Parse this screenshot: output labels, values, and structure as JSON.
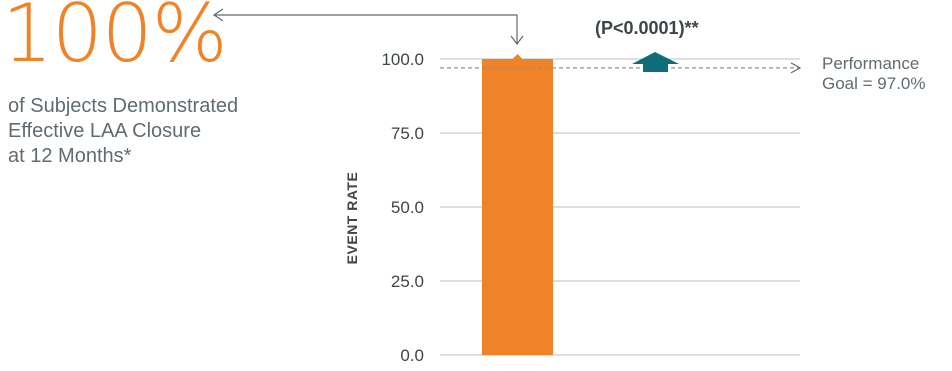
{
  "headline": {
    "value": "100%",
    "lines": [
      "of Subjects Demonstrated",
      "Effective LAA Closure",
      "at 12 Months*"
    ]
  },
  "performance_goal": {
    "lines": [
      "Performance",
      "Goal = 97.0%"
    ],
    "value": 97.0
  },
  "p_value_label": "(P<0.0001)**",
  "colors": {
    "bar": "#f08327",
    "headline": "#f08327",
    "arrow": "#0d6e77",
    "text": "#616b72",
    "grid": "#b9c0c4"
  },
  "chart_data": {
    "type": "bar",
    "categories": [
      ""
    ],
    "values": [
      100.0
    ],
    "ylabel": "EVENT RATE",
    "ylim": [
      0,
      100
    ],
    "yticks": [
      "0.0",
      "25.0",
      "50.0",
      "75.0",
      "100.0"
    ],
    "reference_line": {
      "value": 97.0,
      "style": "dashed"
    },
    "grid": true
  }
}
